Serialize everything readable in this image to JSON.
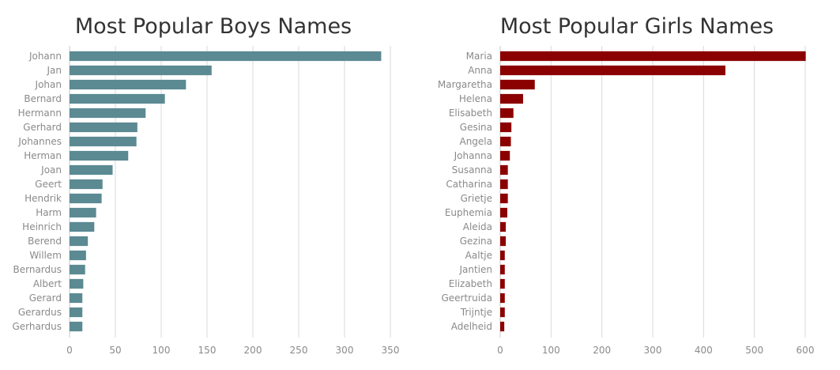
{
  "chart_data": [
    {
      "type": "bar",
      "orientation": "horizontal",
      "title": "Most Popular Boys Names",
      "color": "#5b8a93",
      "categories": [
        "Johann",
        "Jan",
        "Johan",
        "Bernard",
        "Hermann",
        "Gerhard",
        "Johannes",
        "Herman",
        "Joan",
        "Geert",
        "Hendrik",
        "Harm",
        "Heinrich",
        "Berend",
        "Willem",
        "Bernardus",
        "Albert",
        "Gerard",
        "Gerardus",
        "Gerhardus"
      ],
      "values": [
        340,
        155,
        127,
        104,
        83,
        74,
        73,
        64,
        47,
        36,
        35,
        29,
        27,
        20,
        18,
        17,
        15,
        14,
        14,
        14
      ],
      "xlim": [
        0,
        350
      ],
      "xticks": [
        0,
        50,
        100,
        150,
        200,
        250,
        300,
        350
      ],
      "grid": true
    },
    {
      "type": "bar",
      "orientation": "horizontal",
      "title": "Most Popular Girls Names",
      "color": "#8b0000",
      "categories": [
        "Maria",
        "Anna",
        "Margaretha",
        "Helena",
        "Elisabeth",
        "Gesina",
        "Angela",
        "Johanna",
        "Susanna",
        "Catharina",
        "Grietje",
        "Euphemia",
        "Aleida",
        "Gezina",
        "Aaltje",
        "Jantien",
        "Elizabeth",
        "Geertruida",
        "Trijntje",
        "Adelheid"
      ],
      "values": [
        601,
        443,
        68,
        45,
        26,
        22,
        21,
        19,
        15,
        15,
        15,
        14,
        11,
        11,
        9,
        9,
        9,
        9,
        9,
        8
      ],
      "xlim": [
        0,
        600
      ],
      "xticks": [
        0,
        100,
        200,
        300,
        400,
        500,
        600
      ],
      "grid": true
    }
  ]
}
